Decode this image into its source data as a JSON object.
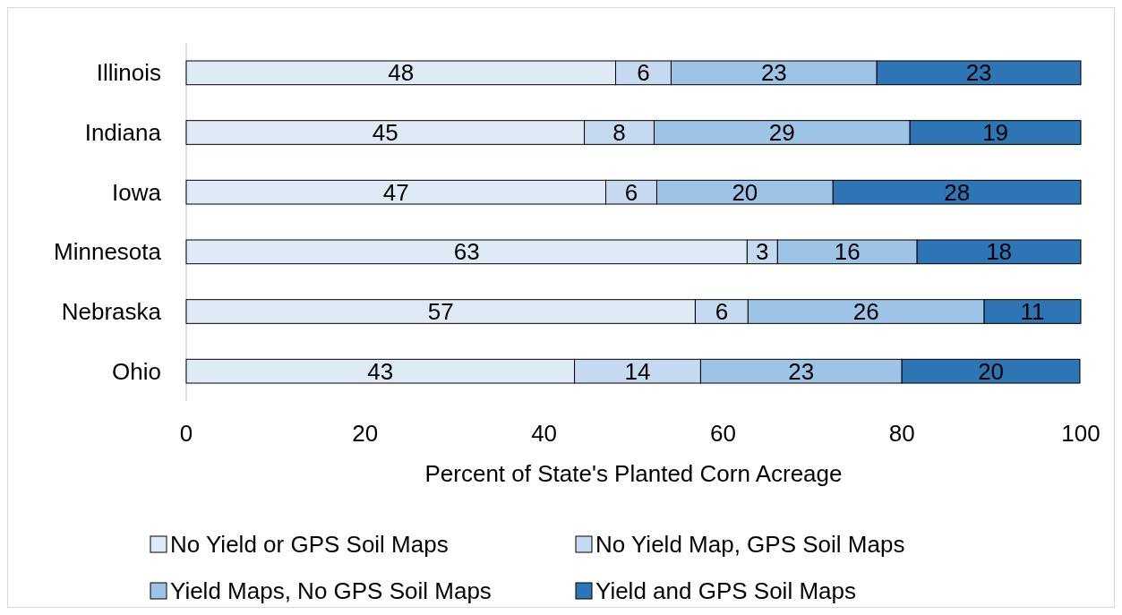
{
  "chart_data": {
    "type": "bar",
    "orientation": "horizontal",
    "stacked": true,
    "xlabel": "Percent of State's Planted Corn Acreage",
    "categories": [
      "Illinois",
      "Indiana",
      "Iowa",
      "Minnesota",
      "Nebraska",
      "Ohio"
    ],
    "xlim": [
      0,
      100
    ],
    "xticks": [
      0,
      20,
      40,
      60,
      80,
      100
    ],
    "legend": "bottom",
    "grid": false,
    "series": [
      {
        "name": "No Yield or GPS Soil Maps",
        "color": "#deebf7",
        "values": [
          48,
          44.5,
          46.9,
          62.7,
          56.9,
          43.4
        ],
        "value_labels": [
          "48",
          "45",
          "47",
          "63",
          "57",
          "43"
        ]
      },
      {
        "name": "No Yield Map, GPS Soil Maps",
        "color": "#c5daf0",
        "values": [
          6.2,
          7.8,
          5.7,
          3.4,
          5.9,
          14.1
        ],
        "value_labels": [
          "6",
          "8",
          "6",
          "3",
          "6",
          "14"
        ]
      },
      {
        "name": "Yield Maps, No GPS Soil Maps",
        "color": "#9dc3e6",
        "values": [
          23,
          28.6,
          19.7,
          15.6,
          26.4,
          22.5
        ],
        "value_labels": [
          "23",
          "29",
          "20",
          "16",
          "26",
          "23"
        ]
      },
      {
        "name": "Yield and GPS Soil Maps",
        "color": "#2e75b6",
        "values": [
          22.8,
          19.1,
          27.7,
          18.3,
          10.8,
          19.9
        ],
        "value_labels": [
          "23",
          "19",
          "28",
          "18",
          "11",
          "20"
        ]
      }
    ]
  }
}
